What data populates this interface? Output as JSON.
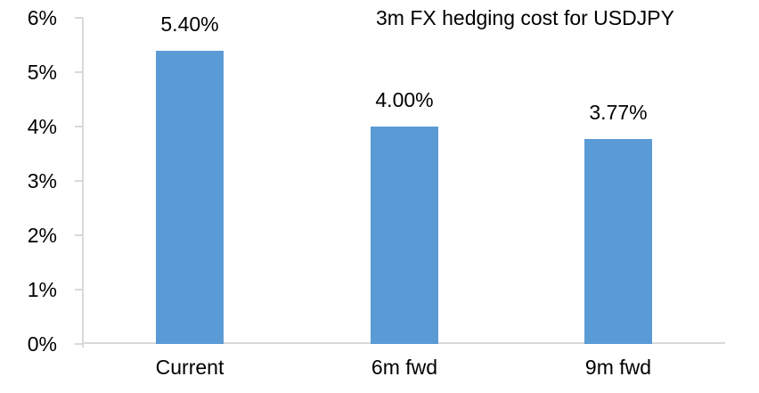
{
  "chart_data": {
    "type": "bar",
    "title": "3m FX hedging cost for USDJPY",
    "categories": [
      "Current",
      "6m fwd",
      "9m fwd"
    ],
    "values": [
      5.4,
      4.0,
      3.77
    ],
    "data_labels": [
      "5.40%",
      "4.00%",
      "3.77%"
    ],
    "y_tick_labels": [
      "0%",
      "1%",
      "2%",
      "3%",
      "4%",
      "5%",
      "6%"
    ],
    "ylim": [
      0,
      6
    ],
    "y_tick_step": 1,
    "xlabel": "",
    "ylabel": "",
    "grid": false,
    "legend": "none",
    "bar_color": "#5B9BD5",
    "axis_color": "#D9D9D9",
    "text_color": "#000000",
    "background_color": "#FFFFFF"
  }
}
